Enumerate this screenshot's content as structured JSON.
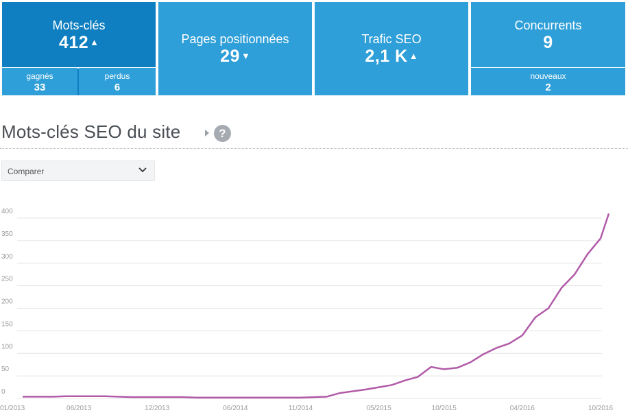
{
  "kpis": {
    "keywords": {
      "title": "Mots-clés",
      "value": "412",
      "arrow": "▲",
      "gained": {
        "label": "gagnés",
        "value": "33"
      },
      "lost": {
        "label": "perdus",
        "value": "6"
      }
    },
    "pages": {
      "title": "Pages positionnées",
      "value": "29",
      "arrow": "▼"
    },
    "traffic": {
      "title": "Trafic SEO",
      "value": "2,1 K",
      "arrow": "▲"
    },
    "competitors": {
      "title": "Concurrents",
      "value": "9",
      "new": {
        "label": "nouveaux",
        "value": "2"
      }
    }
  },
  "section": {
    "title": "Mots-clés SEO du site",
    "help": "?"
  },
  "compare": {
    "label": "Comparer"
  },
  "colors": {
    "tile": "#2e9fd8",
    "tile_active": "#0f7fc1",
    "line": "#b15aa8"
  },
  "chart_data": {
    "type": "line",
    "ylim": [
      0,
      400
    ],
    "yticks": [
      0,
      50,
      100,
      150,
      200,
      250,
      300,
      350,
      400
    ],
    "xticks": [
      "01/2013",
      "06/2013",
      "12/2013",
      "06/2014",
      "11/2014",
      "05/2015",
      "10/2015",
      "04/2016",
      "10/2016"
    ],
    "grid": true,
    "series": [
      {
        "x": [
          "01/2013",
          "02/2013",
          "03/2013",
          "04/2013",
          "05/2013",
          "06/2013",
          "07/2013",
          "08/2013",
          "09/2013",
          "10/2013",
          "11/2013",
          "12/2013",
          "01/2014",
          "02/2014",
          "03/2014",
          "04/2014",
          "05/2014",
          "06/2014",
          "07/2014",
          "08/2014",
          "09/2014",
          "10/2014",
          "11/2014",
          "12/2014",
          "01/2015",
          "02/2015",
          "03/2015",
          "04/2015",
          "05/2015",
          "06/2015",
          "07/2015",
          "08/2015",
          "09/2015",
          "10/2015",
          "11/2015",
          "12/2015",
          "01/2016",
          "02/2016",
          "03/2016",
          "04/2016",
          "05/2016",
          "06/2016",
          "07/2016",
          "08/2016",
          "09/2016",
          "10/2016",
          "11/2016"
        ],
        "values": [
          4,
          4,
          4,
          4,
          5,
          5,
          5,
          5,
          4,
          3,
          3,
          3,
          3,
          3,
          2,
          2,
          2,
          2,
          2,
          2,
          2,
          2,
          2,
          3,
          4,
          12,
          16,
          20,
          25,
          30,
          40,
          48,
          70,
          65,
          68,
          80,
          98,
          112,
          122,
          140,
          180,
          200,
          245,
          275,
          320,
          355,
          410
        ]
      }
    ]
  }
}
